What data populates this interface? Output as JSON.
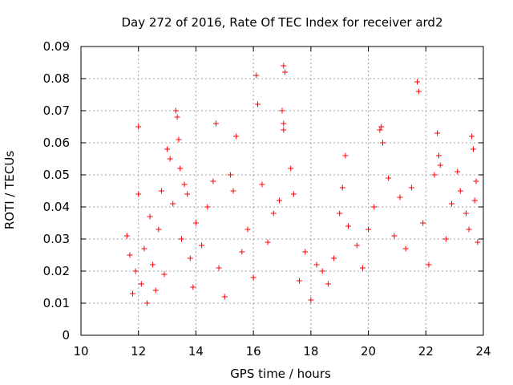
{
  "chart_data": {
    "type": "scatter",
    "title": "Day 272 of 2016, Rate Of TEC Index for receiver ard2",
    "xlabel": "GPS time / hours",
    "ylabel": "ROTI / TECUs",
    "xlim": [
      10,
      24
    ],
    "ylim": [
      0,
      0.09
    ],
    "x_ticks": [
      "10",
      "12",
      "14",
      "16",
      "18",
      "20",
      "22",
      "24"
    ],
    "y_ticks": [
      "0",
      "0.01",
      "0.02",
      "0.03",
      "0.04",
      "0.05",
      "0.06",
      "0.07",
      "0.08",
      "0.09"
    ],
    "grid": true,
    "marker": "+",
    "color": "#ff0000",
    "series": [
      {
        "name": "ard2",
        "points": [
          [
            11.6,
            0.031
          ],
          [
            11.7,
            0.025
          ],
          [
            11.8,
            0.013
          ],
          [
            11.9,
            0.02
          ],
          [
            12.0,
            0.065
          ],
          [
            12.0,
            0.044
          ],
          [
            12.1,
            0.016
          ],
          [
            12.2,
            0.027
          ],
          [
            12.3,
            0.01
          ],
          [
            12.4,
            0.037
          ],
          [
            12.5,
            0.022
          ],
          [
            12.6,
            0.014
          ],
          [
            12.7,
            0.033
          ],
          [
            12.8,
            0.045
          ],
          [
            12.9,
            0.019
          ],
          [
            13.0,
            0.058
          ],
          [
            13.1,
            0.055
          ],
          [
            13.2,
            0.041
          ],
          [
            13.3,
            0.07
          ],
          [
            13.35,
            0.068
          ],
          [
            13.4,
            0.061
          ],
          [
            13.45,
            0.052
          ],
          [
            13.5,
            0.03
          ],
          [
            13.6,
            0.047
          ],
          [
            13.7,
            0.044
          ],
          [
            13.8,
            0.024
          ],
          [
            13.9,
            0.015
          ],
          [
            14.0,
            0.035
          ],
          [
            14.2,
            0.028
          ],
          [
            14.4,
            0.04
          ],
          [
            14.6,
            0.048
          ],
          [
            14.7,
            0.066
          ],
          [
            14.8,
            0.021
          ],
          [
            15.0,
            0.012
          ],
          [
            15.2,
            0.05
          ],
          [
            15.3,
            0.045
          ],
          [
            15.4,
            0.062
          ],
          [
            15.6,
            0.026
          ],
          [
            15.8,
            0.033
          ],
          [
            16.0,
            0.018
          ],
          [
            16.1,
            0.081
          ],
          [
            16.15,
            0.072
          ],
          [
            16.3,
            0.047
          ],
          [
            16.5,
            0.029
          ],
          [
            16.7,
            0.038
          ],
          [
            16.9,
            0.042
          ],
          [
            17.0,
            0.07
          ],
          [
            17.05,
            0.084
          ],
          [
            17.1,
            0.082
          ],
          [
            17.05,
            0.066
          ],
          [
            17.05,
            0.064
          ],
          [
            17.3,
            0.052
          ],
          [
            17.4,
            0.044
          ],
          [
            17.6,
            0.017
          ],
          [
            17.8,
            0.026
          ],
          [
            18.0,
            0.011
          ],
          [
            18.2,
            0.022
          ],
          [
            18.4,
            0.02
          ],
          [
            18.6,
            0.016
          ],
          [
            18.8,
            0.024
          ],
          [
            19.0,
            0.038
          ],
          [
            19.1,
            0.046
          ],
          [
            19.2,
            0.056
          ],
          [
            19.3,
            0.034
          ],
          [
            19.6,
            0.028
          ],
          [
            19.8,
            0.021
          ],
          [
            20.0,
            0.033
          ],
          [
            20.2,
            0.04
          ],
          [
            20.4,
            0.064
          ],
          [
            20.45,
            0.065
          ],
          [
            20.5,
            0.06
          ],
          [
            20.7,
            0.049
          ],
          [
            20.9,
            0.031
          ],
          [
            21.1,
            0.043
          ],
          [
            21.3,
            0.027
          ],
          [
            21.5,
            0.046
          ],
          [
            21.7,
            0.079
          ],
          [
            21.75,
            0.076
          ],
          [
            21.9,
            0.035
          ],
          [
            22.1,
            0.022
          ],
          [
            22.3,
            0.05
          ],
          [
            22.4,
            0.063
          ],
          [
            22.45,
            0.056
          ],
          [
            22.5,
            0.053
          ],
          [
            22.7,
            0.03
          ],
          [
            22.9,
            0.041
          ],
          [
            23.1,
            0.051
          ],
          [
            23.2,
            0.045
          ],
          [
            23.4,
            0.038
          ],
          [
            23.5,
            0.033
          ],
          [
            23.6,
            0.062
          ],
          [
            23.65,
            0.058
          ],
          [
            23.7,
            0.042
          ],
          [
            23.75,
            0.048
          ],
          [
            23.8,
            0.029
          ]
        ]
      }
    ]
  }
}
